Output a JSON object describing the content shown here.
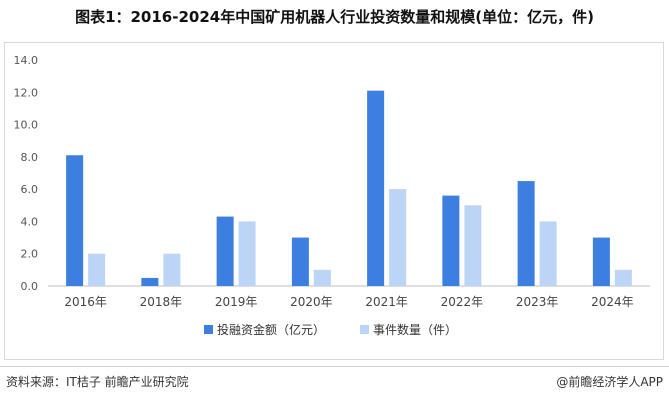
{
  "title": "图表1：2016-2024年中国矿用机器人行业投资数量和规模(单位：亿元，件)",
  "source": "资料来源：IT桔子 前瞻产业研究院",
  "brand": "@前瞻经济学人APP",
  "chart_data": {
    "type": "bar",
    "title": "图表1：2016-2024年中国矿用机器人行业投资数量和规模(单位：亿元，件)",
    "categories": [
      "2016年",
      "2018年",
      "2019年",
      "2020年",
      "2021年",
      "2022年",
      "2023年",
      "2024年"
    ],
    "series": [
      {
        "name": "投融资金额（亿元）",
        "values": [
          8.1,
          0.5,
          4.3,
          3.0,
          12.1,
          5.6,
          6.5,
          3.0
        ],
        "color": "#3c7fe0"
      },
      {
        "name": "事件数量（件）",
        "values": [
          2,
          2,
          4,
          1,
          6,
          5,
          4,
          1
        ],
        "color": "#bcd5f7"
      }
    ],
    "yticks": [
      "0.0",
      "2.0",
      "4.0",
      "6.0",
      "8.0",
      "10.0",
      "12.0",
      "14.0"
    ],
    "ylim": [
      0,
      14
    ],
    "grid": false,
    "legend": "bottom-center",
    "xlabel": "",
    "ylabel": ""
  }
}
